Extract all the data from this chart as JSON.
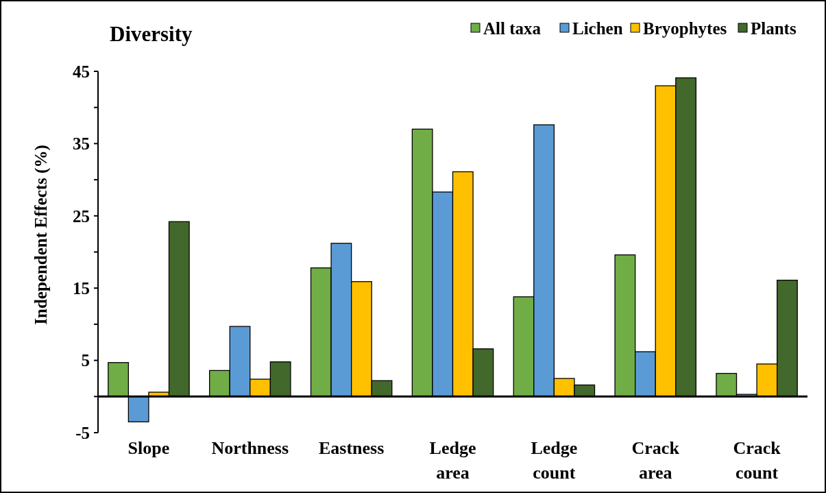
{
  "chart_data": {
    "type": "bar",
    "title": "Diversity",
    "ylabel": "Independent Effects (%)",
    "categories": [
      "Slope",
      "Northness",
      "Eastness",
      "Ledge area",
      "Ledge count",
      "Crack area",
      "Crack count"
    ],
    "series": [
      {
        "name": "All taxa",
        "color": "#70ad47",
        "values": [
          4.7,
          3.6,
          17.8,
          37.0,
          13.8,
          19.6,
          3.2
        ]
      },
      {
        "name": "Lichen",
        "color": "#5b9bd5",
        "values": [
          -3.5,
          9.7,
          21.2,
          28.3,
          37.6,
          6.2,
          0.3
        ]
      },
      {
        "name": "Bryophytes",
        "color": "#ffc000",
        "values": [
          0.6,
          2.4,
          15.9,
          31.1,
          2.5,
          43.0,
          4.5
        ]
      },
      {
        "name": "Plants",
        "color": "#43682b",
        "values": [
          24.2,
          4.8,
          2.2,
          6.6,
          1.6,
          44.1,
          16.1
        ]
      }
    ],
    "ylim": [
      -5,
      45
    ],
    "yticks": [
      -5,
      {
        "value": 0,
        "label": null
      },
      5,
      {
        "value": 10,
        "label": null
      },
      15,
      {
        "value": 20,
        "label": null
      },
      25,
      {
        "value": 30,
        "label": null
      },
      35,
      {
        "value": 40,
        "label": null
      },
      45
    ],
    "legend": "top right",
    "grid": false
  }
}
